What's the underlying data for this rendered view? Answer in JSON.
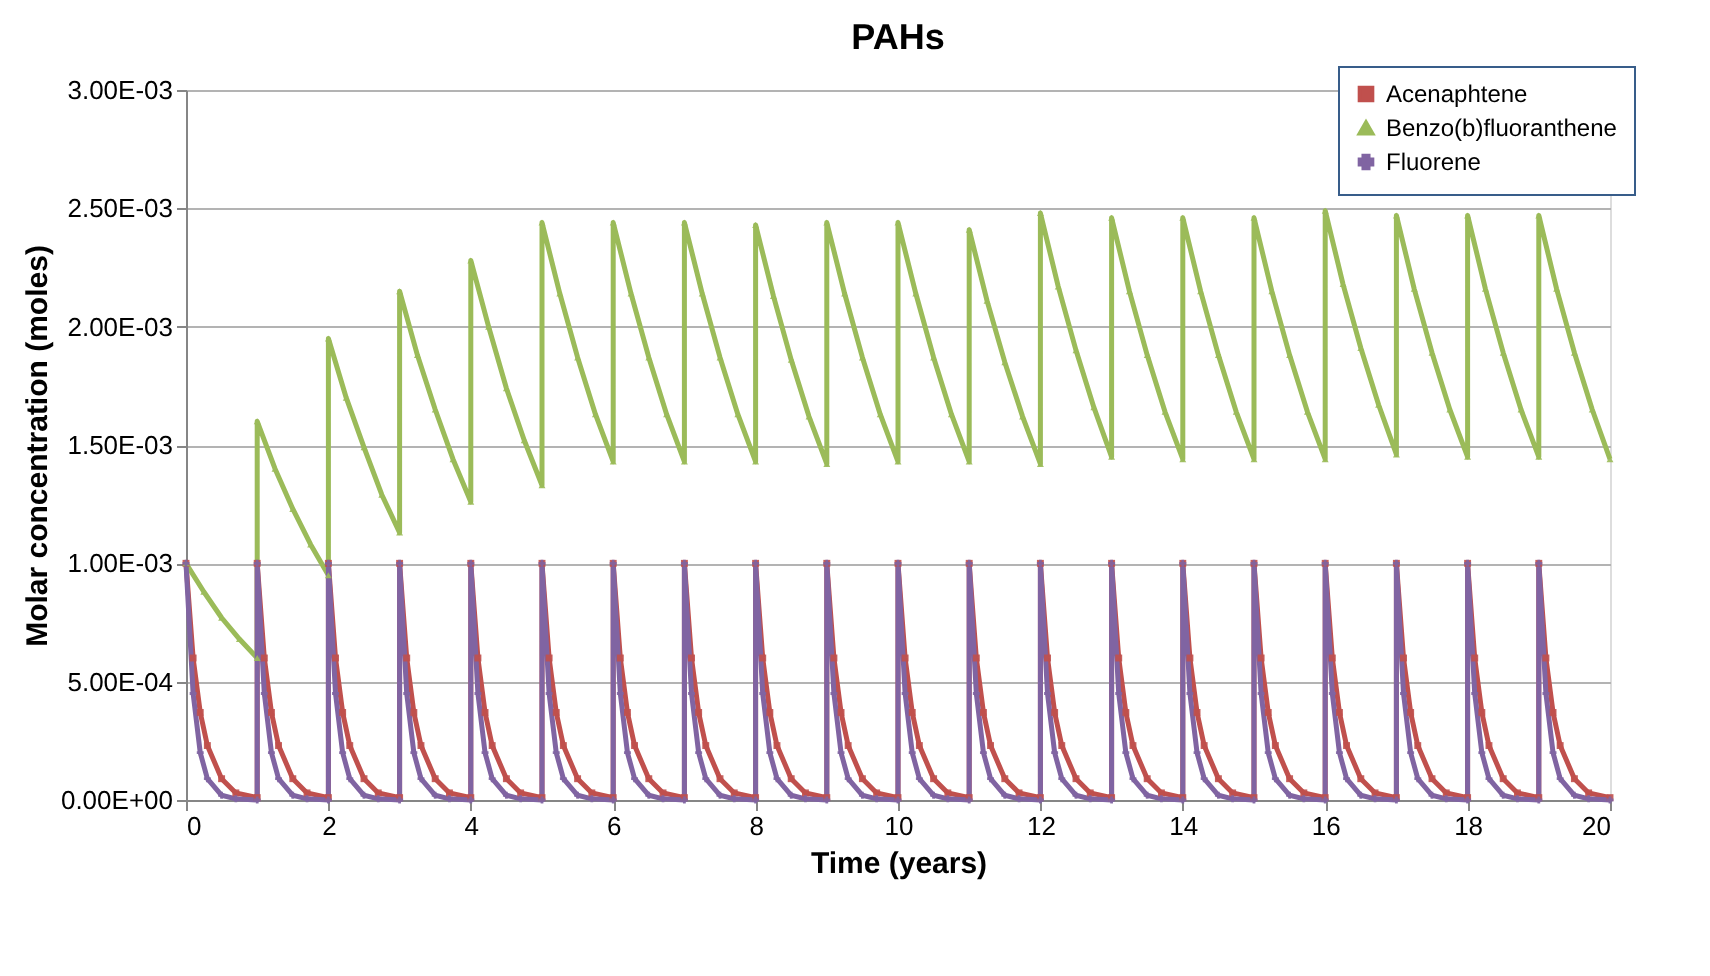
{
  "chart_data": {
    "type": "line",
    "title": "PAHs",
    "xlabel": "Time (years)",
    "ylabel": "Molar concentration (moles)",
    "xlim": [
      0,
      20
    ],
    "xticks": [
      0,
      2,
      4,
      6,
      8,
      10,
      12,
      14,
      16,
      18,
      20
    ],
    "ylim": [
      0,
      0.003
    ],
    "yticks": [
      {
        "value": 0,
        "label": "0.00E+00"
      },
      {
        "value": 0.0005,
        "label": "5.00E-04"
      },
      {
        "value": 0.001,
        "label": "1.00E-03"
      },
      {
        "value": 0.0015,
        "label": "1.50E-03"
      },
      {
        "value": 0.002,
        "label": "2.00E-03"
      },
      {
        "value": 0.0025,
        "label": "2.50E-03"
      },
      {
        "value": 0.003,
        "label": "3.00E-03"
      }
    ],
    "grid": "y",
    "legend": "top right",
    "x": [
      0,
      0.1,
      0.2,
      0.3,
      0.5,
      0.7,
      1,
      1,
      1.1,
      1.2,
      1.3,
      1.5,
      1.7,
      2,
      2,
      2.1,
      2.2,
      2.3,
      2.5,
      2.7,
      3,
      3,
      3.1,
      3.2,
      3.3,
      3.5,
      3.7,
      4,
      4,
      4.1,
      4.2,
      4.3,
      4.5,
      4.7,
      5,
      5,
      5.1,
      5.2,
      5.3,
      5.5,
      5.7,
      6,
      6,
      6.1,
      6.2,
      6.3,
      6.5,
      6.7,
      7,
      7,
      7.1,
      7.2,
      7.3,
      7.5,
      7.7,
      8,
      8,
      8.1,
      8.2,
      8.3,
      8.5,
      8.7,
      9,
      9,
      9.1,
      9.2,
      9.3,
      9.5,
      9.7,
      10,
      10,
      10.1,
      10.2,
      10.3,
      10.5,
      10.7,
      11,
      11,
      11.1,
      11.2,
      11.3,
      11.5,
      11.7,
      12,
      12,
      12.1,
      12.2,
      12.3,
      12.5,
      12.7,
      13,
      13,
      13.1,
      13.2,
      13.3,
      13.5,
      13.7,
      14,
      14,
      14.1,
      14.2,
      14.3,
      14.5,
      14.7,
      15,
      15,
      15.1,
      15.2,
      15.3,
      15.5,
      15.7,
      16,
      16,
      16.1,
      16.2,
      16.3,
      16.5,
      16.7,
      17,
      17,
      17.1,
      17.2,
      17.3,
      17.5,
      17.7,
      18,
      18,
      18.1,
      18.2,
      18.3,
      18.5,
      18.7,
      19,
      19,
      19.1,
      19.2,
      19.3,
      19.5,
      19.7,
      20
    ],
    "series": [
      {
        "name": "Acenaphtene",
        "color": "#c0504d",
        "marker": "square",
        "values": [
          0.001,
          0.0006,
          0.00037,
          0.00023,
          9e-05,
          3e-05,
          1e-05,
          0.001,
          0.0006,
          0.00037,
          0.00023,
          9e-05,
          3e-05,
          1e-05,
          0.001,
          0.0006,
          0.00037,
          0.00023,
          9e-05,
          3e-05,
          1e-05,
          0.001,
          0.0006,
          0.00037,
          0.00023,
          9e-05,
          3e-05,
          1e-05,
          0.001,
          0.0006,
          0.00037,
          0.00023,
          9e-05,
          3e-05,
          1e-05,
          0.001,
          0.0006,
          0.00037,
          0.00023,
          9e-05,
          3e-05,
          1e-05,
          0.001,
          0.0006,
          0.00037,
          0.00023,
          9e-05,
          3e-05,
          1e-05,
          0.001,
          0.0006,
          0.00037,
          0.00023,
          9e-05,
          3e-05,
          1e-05,
          0.001,
          0.0006,
          0.00037,
          0.00023,
          9e-05,
          3e-05,
          1e-05,
          0.001,
          0.0006,
          0.00037,
          0.00023,
          9e-05,
          3e-05,
          1e-05,
          0.001,
          0.0006,
          0.00037,
          0.00023,
          9e-05,
          3e-05,
          1e-05,
          0.001,
          0.0006,
          0.00037,
          0.00023,
          9e-05,
          3e-05,
          1e-05,
          0.001,
          0.0006,
          0.00037,
          0.00023,
          9e-05,
          3e-05,
          1e-05,
          0.001,
          0.0006,
          0.00037,
          0.00023,
          9e-05,
          3e-05,
          1e-05,
          0.001,
          0.0006,
          0.00037,
          0.00023,
          9e-05,
          3e-05,
          1e-05,
          0.001,
          0.0006,
          0.00037,
          0.00023,
          9e-05,
          3e-05,
          1e-05,
          0.001,
          0.0006,
          0.00037,
          0.00023,
          9e-05,
          3e-05,
          1e-05,
          0.001,
          0.0006,
          0.00037,
          0.00023,
          9e-05,
          3e-05,
          1e-05,
          0.001,
          0.0006,
          0.00037,
          0.00023,
          9e-05,
          3e-05,
          1e-05,
          0.001,
          0.0006,
          0.00037,
          0.00023,
          9e-05,
          3e-05,
          1e-05
        ]
      },
      {
        "name": "Benzo(b)fluoranthene",
        "color": "#9bbb59",
        "marker": "triangle",
        "x": [
          0,
          0.25,
          0.5,
          0.75,
          1,
          1,
          1.25,
          1.5,
          1.75,
          2,
          2,
          2.25,
          2.5,
          2.75,
          3,
          3,
          3.25,
          3.5,
          3.75,
          4,
          4,
          4.25,
          4.5,
          4.75,
          5,
          5,
          5.25,
          5.5,
          5.75,
          6,
          6,
          6.25,
          6.5,
          6.75,
          7,
          7,
          7.25,
          7.5,
          7.75,
          8,
          8,
          8.25,
          8.5,
          8.75,
          9,
          9,
          9.25,
          9.5,
          9.75,
          10,
          10,
          10.25,
          10.5,
          10.75,
          11,
          11,
          11.25,
          11.5,
          11.75,
          12,
          12,
          12.25,
          12.5,
          12.75,
          13,
          13,
          13.25,
          13.5,
          13.75,
          14,
          14,
          14.25,
          14.5,
          14.75,
          15,
          15,
          15.25,
          15.5,
          15.75,
          16,
          16,
          16.25,
          16.5,
          16.75,
          17,
          17,
          17.25,
          17.5,
          17.75,
          18,
          18,
          18.25,
          18.5,
          18.75,
          19,
          19,
          19.25,
          19.5,
          19.75,
          20
        ],
        "values": [
          0.001,
          0.00088,
          0.00077,
          0.00068,
          0.0006,
          0.0016,
          0.0014,
          0.00123,
          0.00108,
          0.00095,
          0.00195,
          0.0017,
          0.00149,
          0.00129,
          0.00113,
          0.00215,
          0.00188,
          0.00165,
          0.00144,
          0.00126,
          0.00228,
          0.002,
          0.00174,
          0.00152,
          0.00133,
          0.00244,
          0.00214,
          0.00187,
          0.00163,
          0.00143,
          0.00244,
          0.00214,
          0.00187,
          0.00163,
          0.00143,
          0.00244,
          0.00214,
          0.00187,
          0.00163,
          0.00143,
          0.00243,
          0.00213,
          0.00186,
          0.00162,
          0.00142,
          0.00244,
          0.00214,
          0.00187,
          0.00163,
          0.00143,
          0.00244,
          0.00214,
          0.00187,
          0.00163,
          0.00143,
          0.00241,
          0.00211,
          0.00185,
          0.00162,
          0.00142,
          0.00248,
          0.00217,
          0.0019,
          0.00166,
          0.00145,
          0.00246,
          0.00215,
          0.00188,
          0.00164,
          0.00144,
          0.00246,
          0.00215,
          0.00188,
          0.00164,
          0.00144,
          0.00246,
          0.00215,
          0.00188,
          0.00164,
          0.00144,
          0.00249,
          0.00218,
          0.00191,
          0.00167,
          0.00146,
          0.00247,
          0.00216,
          0.00189,
          0.00165,
          0.00145,
          0.00247,
          0.00216,
          0.00189,
          0.00165,
          0.00145,
          0.00247,
          0.00216,
          0.00189,
          0.00165,
          0.00144
        ]
      },
      {
        "name": "Fluorene",
        "color": "#8064a2",
        "marker": "cross",
        "values": [
          0.001,
          0.00045,
          0.0002,
          9e-05,
          2e-05,
          5e-06,
          0,
          0.001,
          0.00045,
          0.0002,
          9e-05,
          2e-05,
          5e-06,
          0,
          0.001,
          0.00045,
          0.0002,
          9e-05,
          2e-05,
          5e-06,
          0,
          0.001,
          0.00045,
          0.0002,
          9e-05,
          2e-05,
          5e-06,
          0,
          0.001,
          0.00045,
          0.0002,
          9e-05,
          2e-05,
          5e-06,
          0,
          0.001,
          0.00045,
          0.0002,
          9e-05,
          2e-05,
          5e-06,
          0,
          0.001,
          0.00045,
          0.0002,
          9e-05,
          2e-05,
          5e-06,
          0,
          0.001,
          0.00045,
          0.0002,
          9e-05,
          2e-05,
          5e-06,
          0,
          0.001,
          0.00045,
          0.0002,
          9e-05,
          2e-05,
          5e-06,
          0,
          0.001,
          0.00045,
          0.0002,
          9e-05,
          2e-05,
          5e-06,
          0,
          0.001,
          0.00045,
          0.0002,
          9e-05,
          2e-05,
          5e-06,
          0,
          0.001,
          0.00045,
          0.0002,
          9e-05,
          2e-05,
          5e-06,
          0,
          0.001,
          0.00045,
          0.0002,
          9e-05,
          2e-05,
          5e-06,
          0,
          0.001,
          0.00045,
          0.0002,
          9e-05,
          2e-05,
          5e-06,
          0,
          0.001,
          0.00045,
          0.0002,
          9e-05,
          2e-05,
          5e-06,
          0,
          0.001,
          0.00045,
          0.0002,
          9e-05,
          2e-05,
          5e-06,
          0,
          0.001,
          0.00045,
          0.0002,
          9e-05,
          2e-05,
          5e-06,
          0,
          0.001,
          0.00045,
          0.0002,
          9e-05,
          2e-05,
          5e-06,
          0,
          0.001,
          0.00045,
          0.0002,
          9e-05,
          2e-05,
          5e-06,
          0,
          0.001,
          0.00045,
          0.0002,
          9e-05,
          2e-05,
          5e-06,
          0
        ]
      }
    ]
  }
}
